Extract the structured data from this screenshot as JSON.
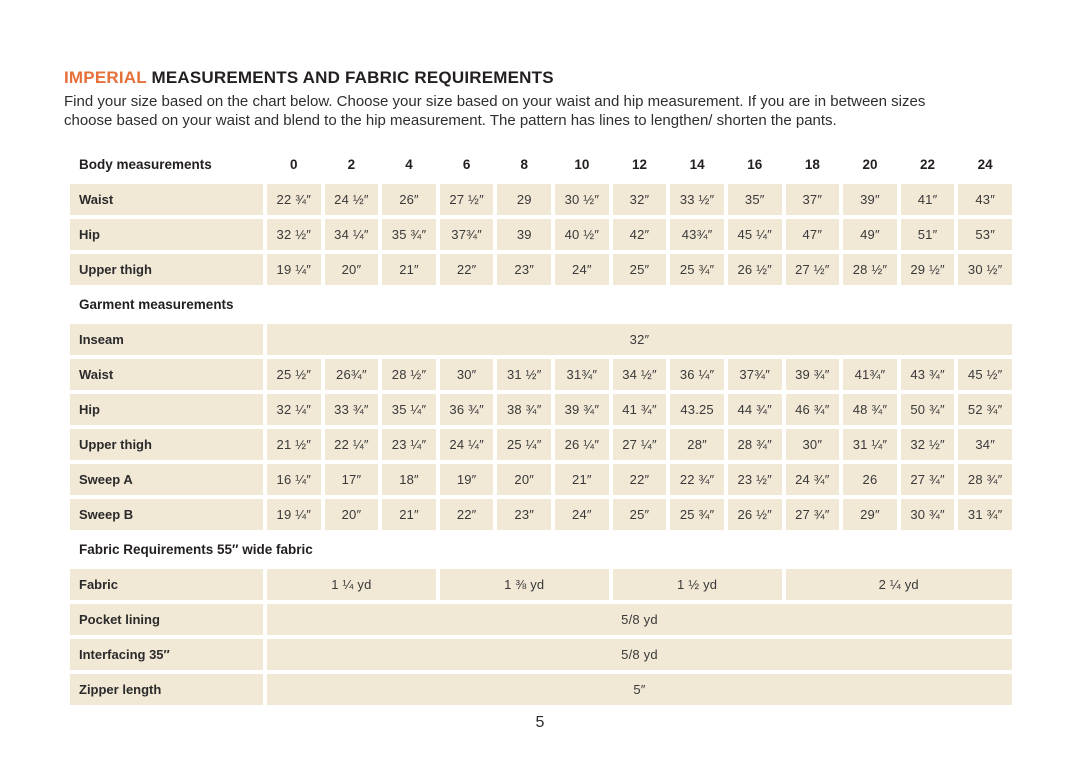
{
  "colors": {
    "accent_orange": "#e5703a",
    "cell_beige": "#f1e8d6",
    "heading_text": "#231f20",
    "value_text": "#3a3a3a"
  },
  "page": {
    "title": {
      "highlight": "IMPERIAL",
      "rest": " MEASUREMENTS AND FABRIC REQUIREMENTS"
    },
    "subtitle_lines": [
      "Find your size based on the chart below. Choose your size based on your waist and hip measurement. If you are in between sizes",
      "choose based on your waist and blend to the hip measurement. The pattern has lines to lengthen/ shorten the pants."
    ],
    "page_number": "5"
  },
  "table": {
    "sizes": [
      "0",
      "2",
      "4",
      "6",
      "8",
      "10",
      "12",
      "14",
      "16",
      "18",
      "20",
      "22",
      "24"
    ],
    "sections": [
      {
        "label": "Body measurements",
        "slug": "body-measurements",
        "show_sizes": true,
        "rows": [
          {
            "label": "Waist",
            "values": [
              "22 ¾″",
              "24 ½″",
              "26″",
              "27 ½″",
              "29",
              "30 ½″",
              "32″",
              "33 ½″",
              "35″",
              "37″",
              "39″",
              "41″",
              "43″"
            ]
          },
          {
            "label": "Hip",
            "values": [
              "32 ½″",
              "34 ¼″",
              "35 ¾″",
              "37¾″",
              "39",
              "40 ½″",
              "42″",
              "43¾″",
              "45 ¼″",
              "47″",
              "49″",
              "51″",
              "53″"
            ]
          },
          {
            "label": "Upper thigh",
            "values": [
              "19 ¼″",
              "20″",
              "21″",
              "22″",
              "23″",
              "24″",
              "25″",
              "25 ¾″",
              "26 ½″",
              "27 ½″",
              "28 ½″",
              "29 ½″",
              "30 ½″"
            ]
          }
        ]
      },
      {
        "label": "Garment measurements",
        "slug": "garment-measurements",
        "show_sizes": false,
        "rows": [
          {
            "label": "Inseam",
            "span_value": "32″"
          },
          {
            "label": "Waist",
            "values": [
              "25 ½″",
              "26¾″",
              "28 ½″",
              "30″",
              "31 ½″",
              "31¾″",
              "34 ½″",
              "36 ¼″",
              "37¾″",
              "39 ¾″",
              "41¾″",
              "43 ¾″",
              "45 ½″"
            ]
          },
          {
            "label": "Hip",
            "values": [
              "32 ¼″",
              "33 ¾″",
              "35 ¼″",
              "36 ¾″",
              "38 ¾″",
              "39 ¾″",
              "41 ¾″",
              "43.25",
              "44 ¾″",
              "46 ¾″",
              "48 ¾″",
              "50 ¾″",
              "52 ¾″"
            ]
          },
          {
            "label": "Upper thigh",
            "values": [
              "21 ½″",
              "22 ¼″",
              "23 ¼″",
              "24 ¼″",
              "25 ¼″",
              "26 ¼″",
              "27 ¼″",
              "28″",
              "28 ¾″",
              "30″",
              "31 ¼″",
              "32 ½″",
              "34″"
            ]
          },
          {
            "label": "Sweep A",
            "values": [
              "16 ¼″",
              "17″",
              "18″",
              "19″",
              "20″",
              "21″",
              "22″",
              "22 ¾″",
              "23 ½″",
              "24 ¾″",
              "26",
              "27 ¾″",
              "28 ¾″"
            ]
          },
          {
            "label": "Sweep B",
            "values": [
              "19 ¼″",
              "20″",
              "21″",
              "22″",
              "23″",
              "24″",
              "25″",
              "25 ¾″",
              "26 ½″",
              "27 ¾″",
              "29″",
              "30 ¾″",
              "31 ¾″"
            ]
          }
        ]
      },
      {
        "label": "Fabric Requirements 55″ wide fabric",
        "slug": "fabric-requirements",
        "show_sizes": false,
        "rows": [
          {
            "label": "Fabric",
            "spans": [
              {
                "value": "1 ¼ yd",
                "cols": 3
              },
              {
                "value": "1 ⅜ yd",
                "cols": 3
              },
              {
                "value": "1 ½ yd",
                "cols": 3
              },
              {
                "value": "2 ¼ yd",
                "cols": 4
              }
            ]
          },
          {
            "label": "Pocket lining",
            "span_value": "5/8 yd"
          },
          {
            "label": "Interfacing 35″",
            "span_value": "5/8 yd"
          },
          {
            "label": "Zipper length",
            "span_value": "5″"
          }
        ]
      }
    ]
  }
}
